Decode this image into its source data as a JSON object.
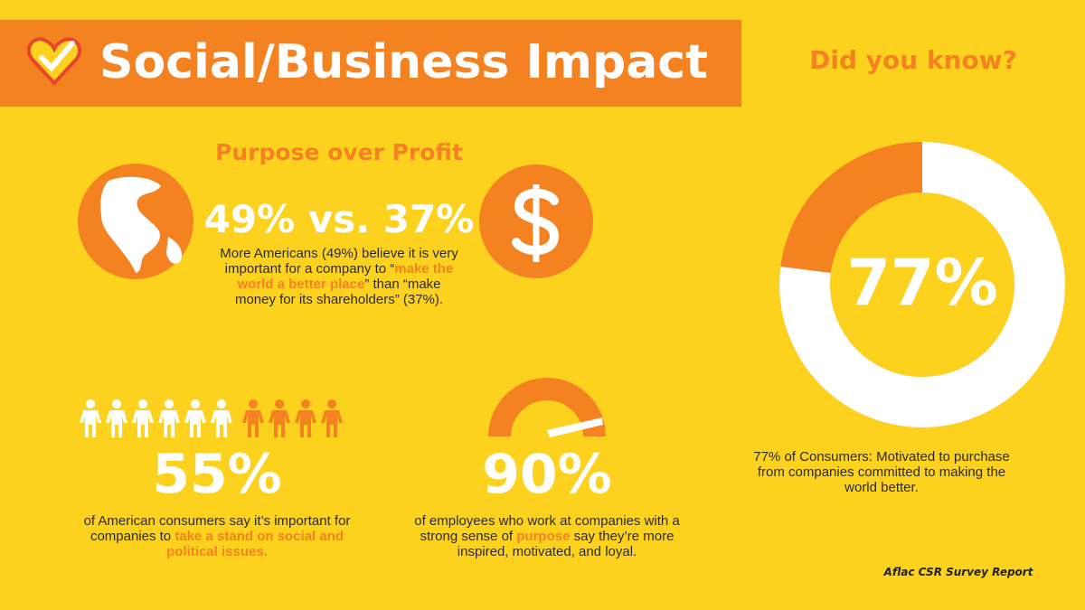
{
  "header": {
    "title": "Social/Business Impact",
    "side_title": "Did you know?"
  },
  "purpose": {
    "heading": "Purpose over Profit",
    "stat": "49% vs. 37%",
    "text": [
      "More Americans (49%) believe it is very important for a company to “",
      "make the world a better place",
      "” than “make money for its shareholders” (37%)."
    ]
  },
  "stand": {
    "stat": "55%",
    "text": [
      "of American consumers say it’s important for companies to ",
      "take a stand on social and political issues."
    ]
  },
  "employees": {
    "stat": "90%",
    "text": [
      "of employees who work at companies with a strong sense of ",
      "purpose",
      " say they’re more inspired, motivated, and loyal."
    ]
  },
  "donut": {
    "value": 77,
    "label": "77%",
    "caption": "77% of Consumers: Motivated to purchase from companies committed to making the world better."
  },
  "source": "Aflac CSR Survey Report"
}
